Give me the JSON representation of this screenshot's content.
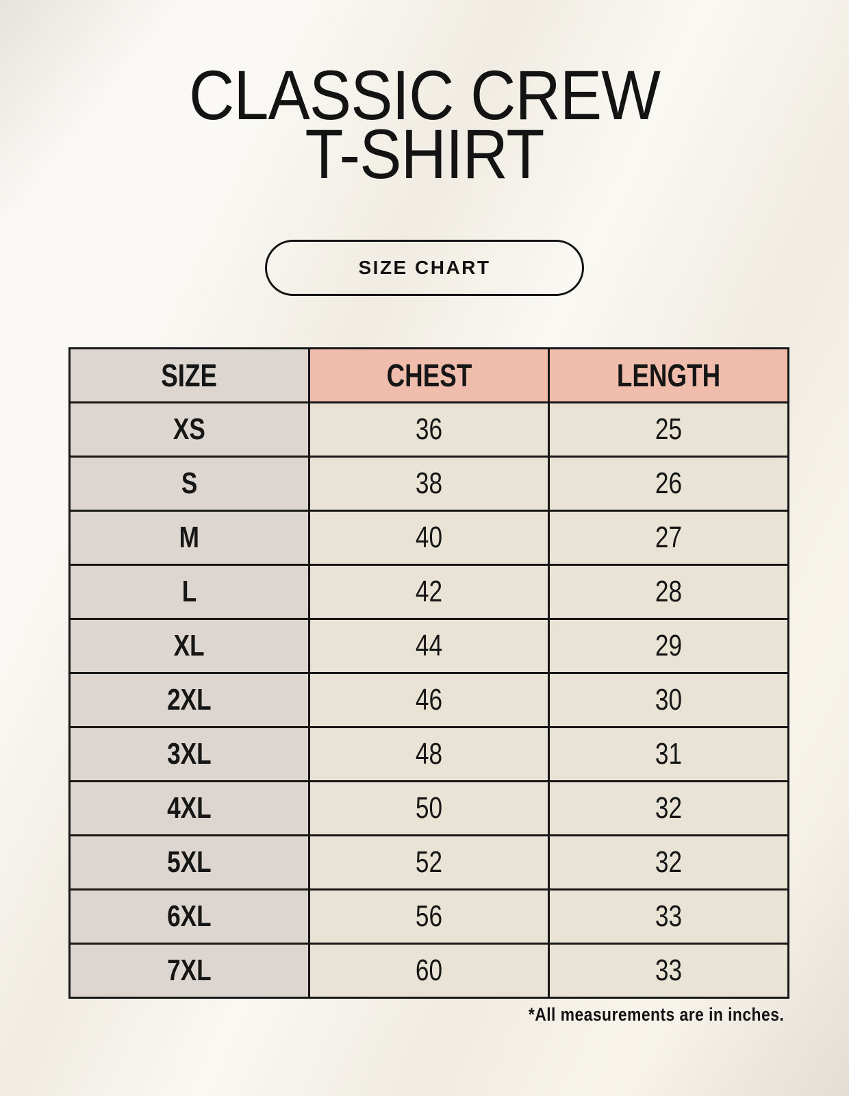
{
  "header": {
    "title_line1": "CLASSIC CREW",
    "title_line2": "T-SHIRT",
    "size_chart_label": "SIZE CHART"
  },
  "chart_data": {
    "type": "table",
    "columns": [
      "SIZE",
      "CHEST",
      "LENGTH"
    ],
    "rows": [
      [
        "XS",
        "36",
        "25"
      ],
      [
        "S",
        "38",
        "26"
      ],
      [
        "M",
        "40",
        "27"
      ],
      [
        "L",
        "42",
        "28"
      ],
      [
        "XL",
        "44",
        "29"
      ],
      [
        "2XL",
        "46",
        "30"
      ],
      [
        "3XL",
        "48",
        "31"
      ],
      [
        "4XL",
        "50",
        "32"
      ],
      [
        "5XL",
        "52",
        "32"
      ],
      [
        "6XL",
        "56",
        "33"
      ],
      [
        "7XL",
        "60",
        "33"
      ]
    ],
    "units": "inches"
  },
  "footer": {
    "note": "*All measurements are in inches."
  },
  "colors": {
    "background": "#f5f1e8",
    "header_accent": "#f0bcac",
    "size_column": "#ddd6d0",
    "data_cell": "#e9e3d6",
    "border": "#161616",
    "text": "#131313"
  }
}
